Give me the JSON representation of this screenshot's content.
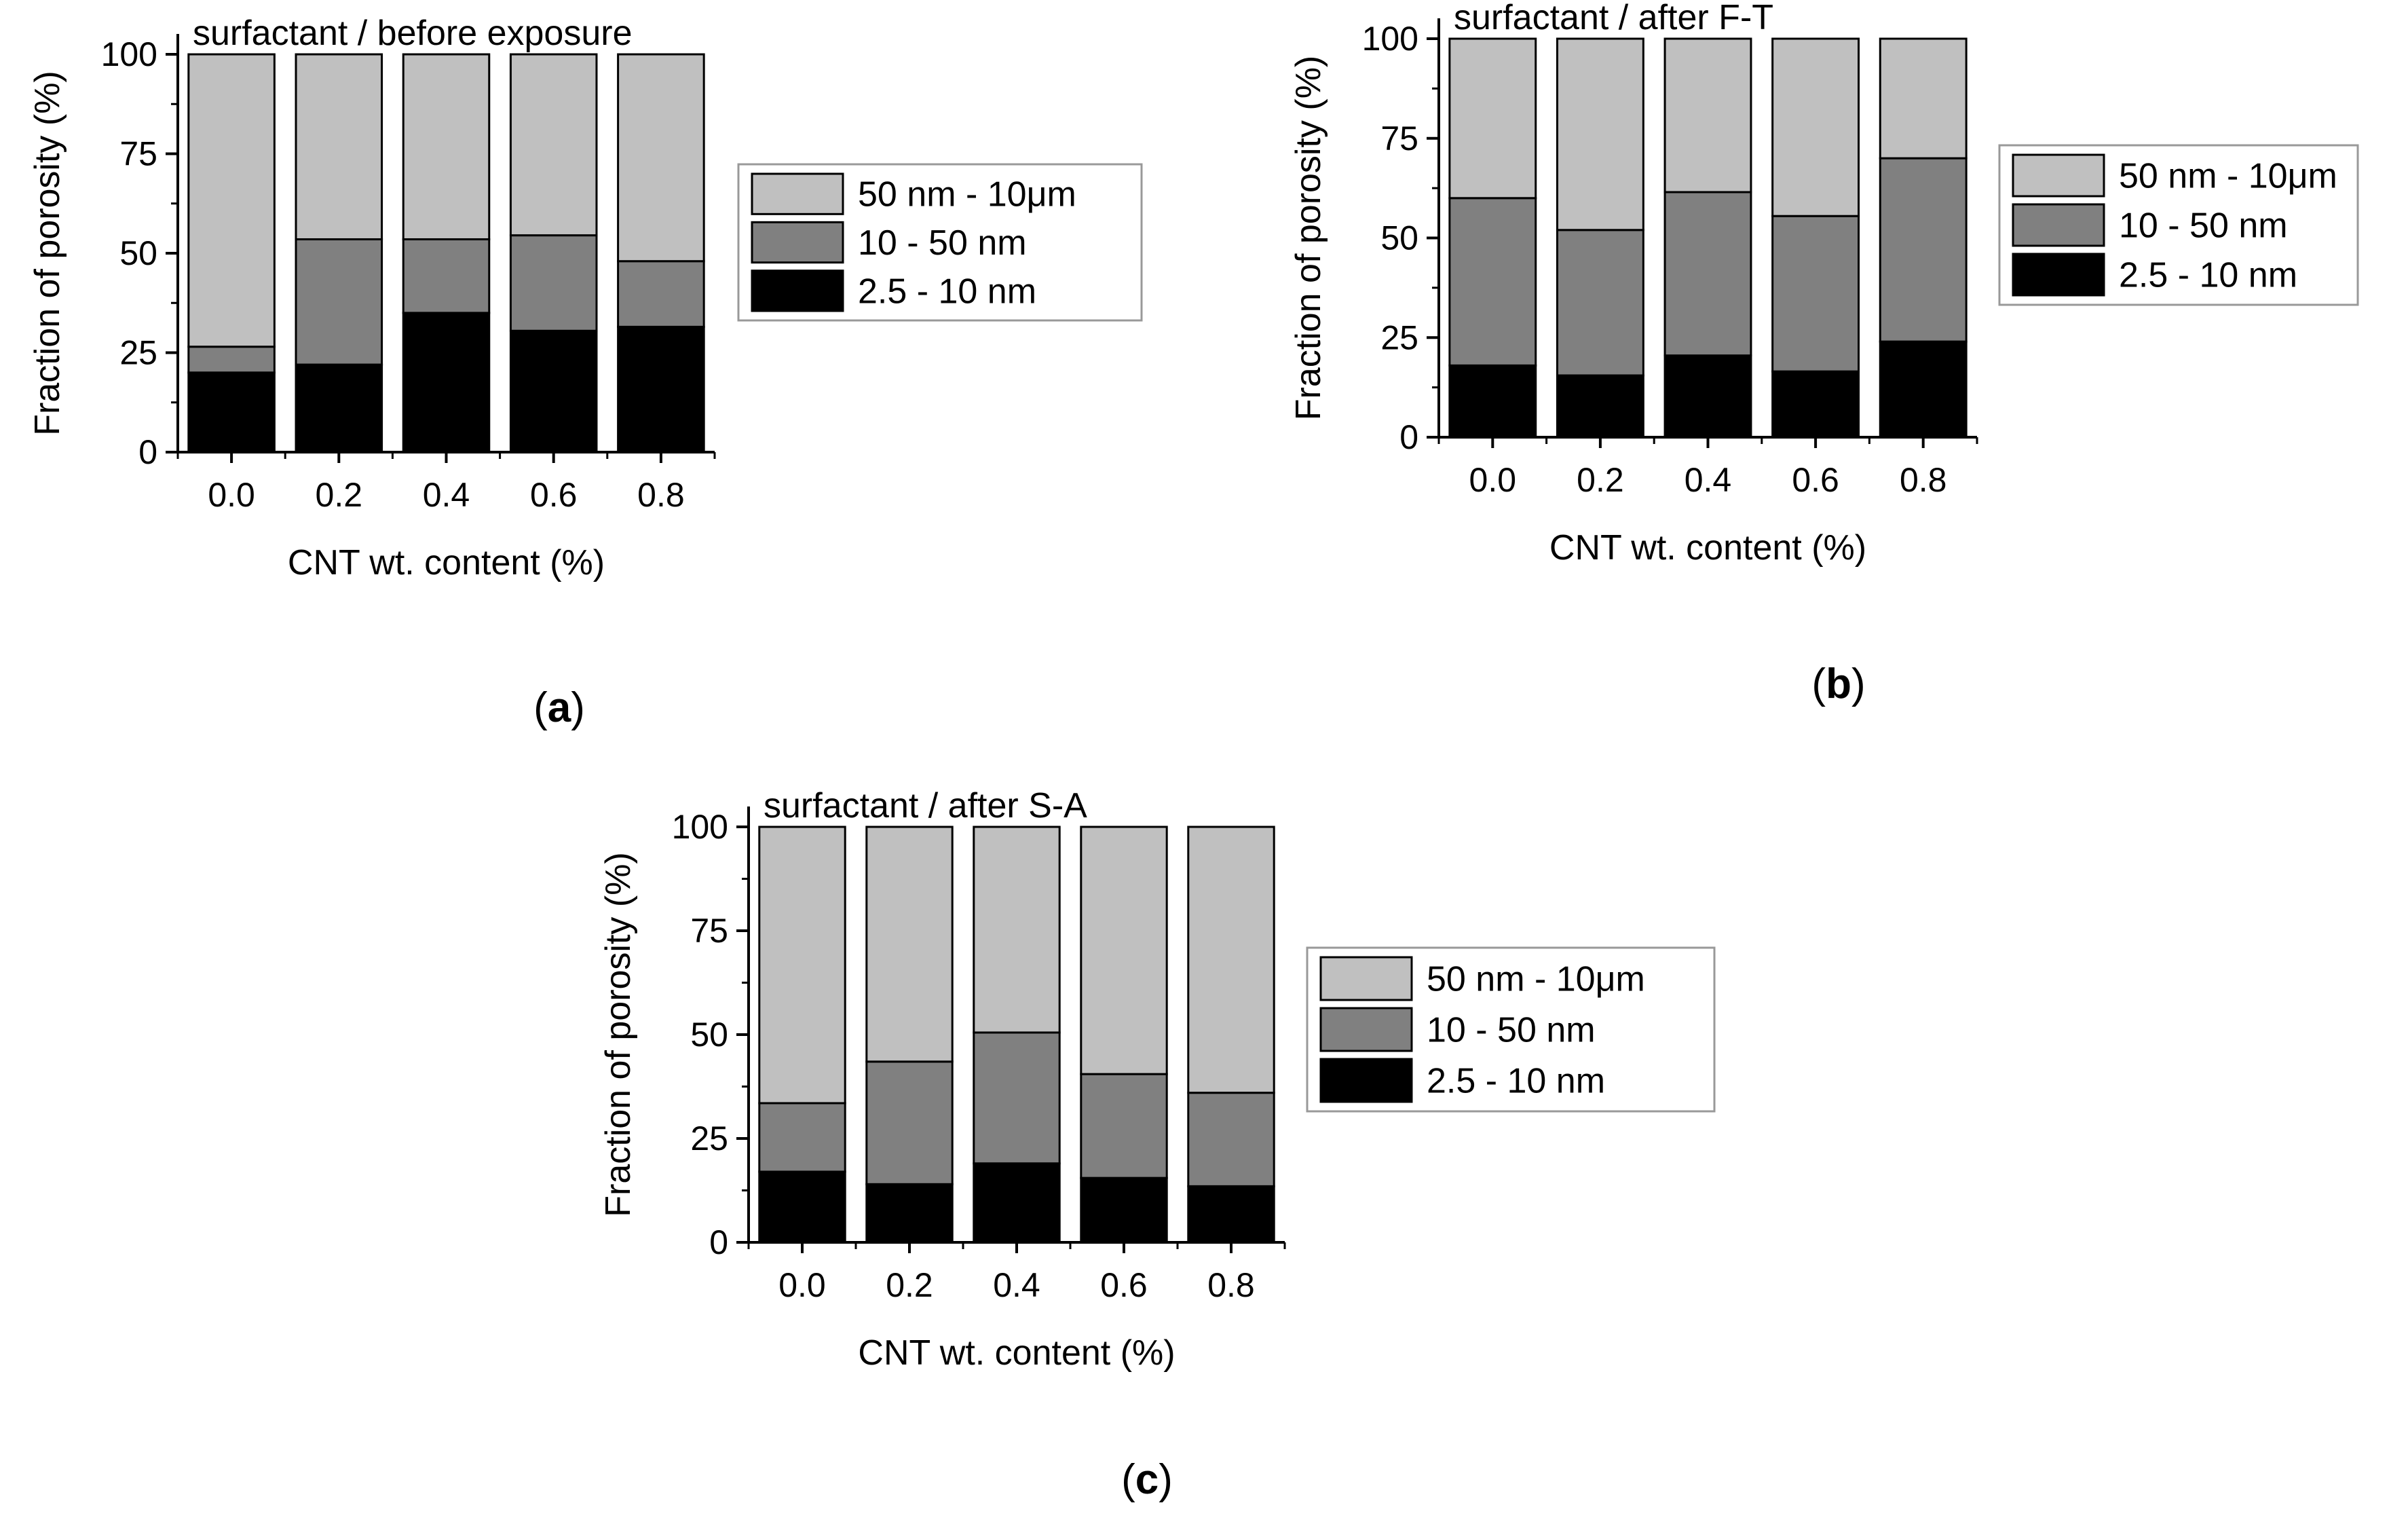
{
  "colors": {
    "large": "#c0c0c0",
    "medium": "#808080",
    "small": "#000000",
    "axis": "#000000",
    "background": "#ffffff"
  },
  "chart_data": [
    {
      "type": "bar",
      "stacked": true,
      "panel_label": "a",
      "title": "surfactant / before exposure",
      "xlabel": "CNT wt. content (%)",
      "ylabel": "Fraction of porosity (%)",
      "categories": [
        "0.0",
        "0.2",
        "0.4",
        "0.6",
        "0.8"
      ],
      "ylim": [
        0,
        100
      ],
      "yticks": [
        "0",
        "25",
        "50",
        "75",
        "100"
      ],
      "legend_position": "right",
      "series": [
        {
          "name": "2.5 - 10 nm",
          "color_key": "small",
          "values": [
            20,
            22,
            35,
            30.5,
            31.5
          ]
        },
        {
          "name": "10 - 50 nm",
          "color_key": "medium",
          "values": [
            6.5,
            31.5,
            18.5,
            24,
            16.5
          ]
        },
        {
          "name": "50 nm - 10μm",
          "color_key": "large",
          "values": [
            73.5,
            46.5,
            46.5,
            45.5,
            52
          ]
        }
      ],
      "legend_order": [
        2,
        1,
        0
      ]
    },
    {
      "type": "bar",
      "stacked": true,
      "panel_label": "b",
      "title": "surfactant / after F-T",
      "xlabel": "CNT wt. content (%)",
      "ylabel": "Fraction of porosity (%)",
      "categories": [
        "0.0",
        "0.2",
        "0.4",
        "0.6",
        "0.8"
      ],
      "ylim": [
        0,
        100
      ],
      "yticks": [
        "0",
        "25",
        "50",
        "75",
        "100"
      ],
      "legend_position": "right",
      "series": [
        {
          "name": "2.5 - 10 nm",
          "color_key": "small",
          "values": [
            18,
            15.5,
            20.5,
            16.5,
            24
          ]
        },
        {
          "name": "10 - 50 nm",
          "color_key": "medium",
          "values": [
            42,
            36.5,
            41,
            39,
            46
          ]
        },
        {
          "name": "50 nm - 10μm",
          "color_key": "large",
          "values": [
            40,
            48,
            38.5,
            44.5,
            30
          ]
        }
      ],
      "legend_order": [
        2,
        1,
        0
      ]
    },
    {
      "type": "bar",
      "stacked": true,
      "panel_label": "c",
      "title": "surfactant / after S-A",
      "xlabel": "CNT wt. content (%)",
      "ylabel": "Fraction of porosity (%)",
      "categories": [
        "0.0",
        "0.2",
        "0.4",
        "0.6",
        "0.8"
      ],
      "ylim": [
        0,
        100
      ],
      "yticks": [
        "0",
        "25",
        "50",
        "75",
        "100"
      ],
      "legend_position": "right",
      "series": [
        {
          "name": "2.5 - 10 nm",
          "color_key": "small",
          "values": [
            17,
            14,
            19,
            15.5,
            13.5
          ]
        },
        {
          "name": "10 - 50 nm",
          "color_key": "medium",
          "values": [
            16.5,
            29.5,
            31.5,
            25,
            22.5
          ]
        },
        {
          "name": "50 nm - 10μm",
          "color_key": "large",
          "values": [
            66.5,
            56.5,
            49.5,
            59.5,
            64
          ]
        }
      ],
      "legend_order": [
        2,
        1,
        0
      ]
    }
  ]
}
